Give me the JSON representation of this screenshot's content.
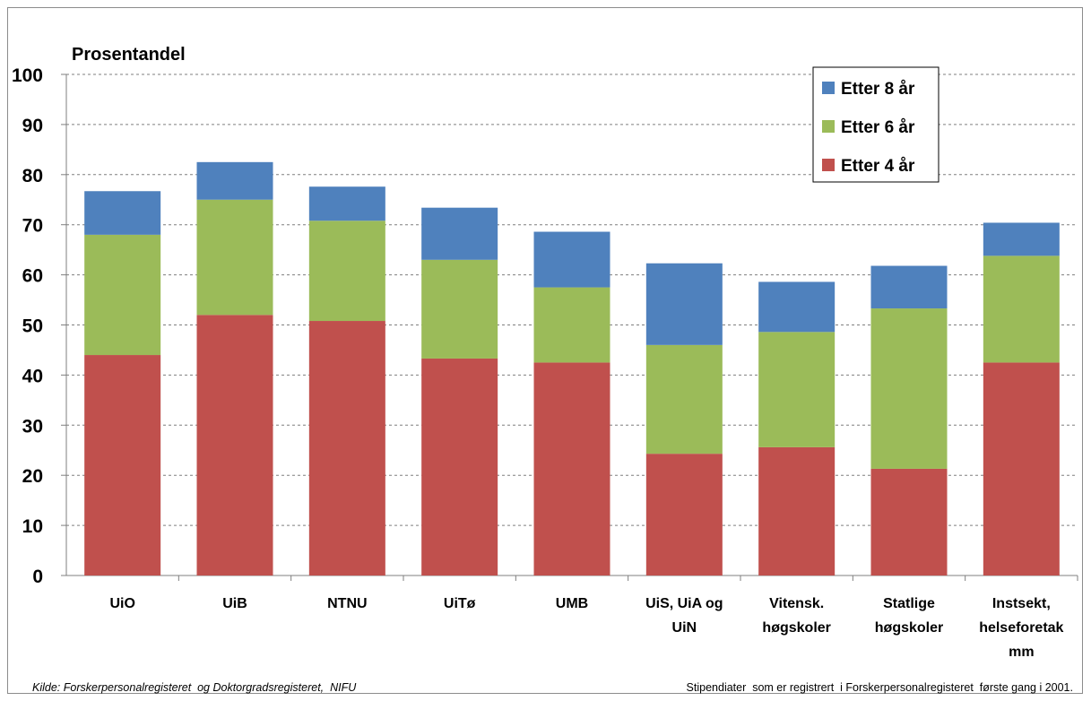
{
  "chart_data": {
    "type": "bar",
    "stacked": true,
    "ylabel": "Prosentandel",
    "ylim": [
      0,
      100
    ],
    "yticks": [
      0,
      10,
      20,
      30,
      40,
      50,
      60,
      70,
      80,
      90,
      100
    ],
    "grid": true,
    "legend_position": "top-right",
    "categories": [
      [
        "UiO"
      ],
      [
        "UiB"
      ],
      [
        "NTNU"
      ],
      [
        "UiTø"
      ],
      [
        "UMB"
      ],
      [
        "UiS, UiA og",
        "UiN"
      ],
      [
        "Vitensk.",
        "høgskoler"
      ],
      [
        "Statlige",
        "høgskoler"
      ],
      [
        "Instsekt,",
        "helseforetak",
        "mm"
      ]
    ],
    "series": [
      {
        "name": "Etter 4 år",
        "color": "#c0504d",
        "values": [
          44,
          52,
          50.8,
          43.3,
          42.5,
          24.3,
          25.6,
          21.3,
          42.5
        ]
      },
      {
        "name": "Etter 6 år",
        "color": "#9bbb59",
        "values": [
          24,
          23,
          20,
          19.7,
          15,
          21.7,
          23,
          32,
          21.3
        ]
      },
      {
        "name": "Etter 8 år",
        "color": "#4f81bd",
        "values": [
          8.7,
          7.5,
          6.8,
          10.4,
          11.1,
          16.3,
          10,
          8.5,
          6.6
        ]
      }
    ]
  },
  "footer": {
    "source": "Kilde: Forskerpersonalregisteret  og Doktorgradsregisteret,  NIFU",
    "note": "Stipendiater  som er registrert  i Forskerpersonalregisteret  første gang i 2001."
  }
}
